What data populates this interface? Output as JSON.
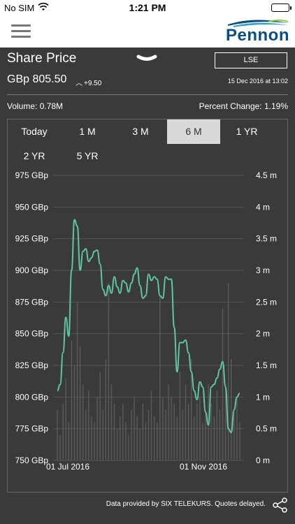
{
  "status_bar": {
    "carrier": "No SIM",
    "time": "1:21 PM"
  },
  "header": {
    "logo_text": "Pennon",
    "menu_icon": "hamburger-menu-icon"
  },
  "panel": {
    "title": "Share Price",
    "exchange_button": "LSE",
    "price": "GBp 805.50",
    "change": "+9.50",
    "timestamp": "15 Dec 2016 at 13:02",
    "volume": "Volume: 0.78M",
    "percent_change": "Percent Change:  1.19%"
  },
  "ranges": [
    "Today",
    "1 M",
    "3 M",
    "6 M",
    "1 YR",
    "2 YR",
    "5 YR"
  ],
  "active_range": "6 M",
  "footer": {
    "credit": "Data provided by SIX TELEKURS. Quotes delayed."
  },
  "colors": {
    "price_line": "#5ec7a0",
    "volume_bars": "#5a5a5a",
    "background": "#3a3a3a",
    "accent_logo": "#0b4f82"
  },
  "chart_data": {
    "type": "line",
    "y_left": {
      "ticks": [
        "975 GBp",
        "950 GBp",
        "925 GBp",
        "900 GBp",
        "875 GBp",
        "850 GBp",
        "825 GBp",
        "800 GBp",
        "775 GBp",
        "750 GBp"
      ],
      "range": [
        750,
        975
      ]
    },
    "y_right": {
      "ticks": [
        "4.5 m",
        "4 m",
        "3.5 m",
        "3 m",
        "2.5 m",
        "2 m",
        "1.5 m",
        "1 m",
        "0.5 m",
        "0 m"
      ],
      "range": [
        0,
        4.5
      ]
    },
    "x_labels": [
      "01 Jul 2016",
      "01 Nov 2016"
    ],
    "series": [
      {
        "values": [
          805,
          810,
          835,
          863,
          848,
          900,
          940,
          935,
          900,
          915,
          917,
          907,
          910,
          915,
          916,
          905,
          885,
          880,
          888,
          882,
          895,
          887,
          882,
          892,
          890,
          883,
          890,
          897,
          902,
          888,
          878,
          880,
          897,
          892,
          895,
          893,
          880,
          878,
          895,
          893,
          893,
          855,
          820,
          843,
          843,
          845,
          835,
          820,
          805,
          798,
          812,
          808,
          788,
          778,
          808,
          810,
          815,
          822,
          828,
          808,
          775,
          772,
          790,
          800,
          803
        ]
      },
      {
        "values": [
          0.8,
          0.4,
          0.9,
          1.3,
          0.6,
          1.9,
          1.5,
          2.5,
          1.8,
          1.2,
          0.8,
          1.1,
          0.7,
          0.6,
          1.0,
          1.4,
          0.8,
          1.6,
          2.8,
          1.2,
          0.9,
          0.5,
          0.7,
          0.9,
          0.6,
          0.4,
          0.8,
          1.0,
          0.7,
          0.5,
          0.9,
          0.6,
          0.8,
          1.1,
          0.7,
          0.6,
          2.6,
          1.0,
          0.8,
          1.2,
          1.0,
          0.9,
          0.7,
          1.4,
          0.8,
          1.2,
          0.9,
          1.6,
          0.7,
          0.9,
          1.0,
          0.6,
          0.8,
          1.2,
          0.9,
          0.7,
          1.1,
          0.8,
          2.4,
          1.2,
          2.8,
          1.6,
          0.8,
          1.0,
          0.6
        ]
      }
    ]
  }
}
